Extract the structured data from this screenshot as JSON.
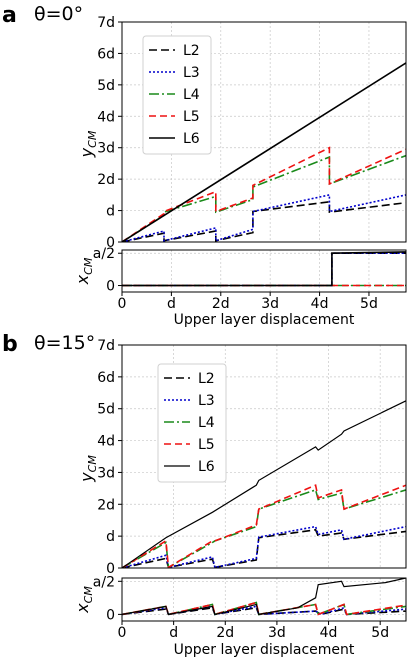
{
  "chart_data": [
    {
      "panel_letter": "a",
      "theta_label": "θ=0°",
      "type": "line",
      "xlabel": "Upper layer displacement",
      "top_ylabel": "y",
      "top_ylabel_sub": "CM",
      "bottom_ylabel": "x",
      "bottom_ylabel_sub": "CM",
      "xlim": [
        0,
        5.75
      ],
      "top_ylim": [
        0,
        7
      ],
      "bottom_ylim": [
        -0.1,
        0.55
      ],
      "xticks": [
        {
          "v": 0,
          "label": "0"
        },
        {
          "v": 1,
          "label": "d"
        },
        {
          "v": 2,
          "label": "2d"
        },
        {
          "v": 3,
          "label": "3d"
        },
        {
          "v": 4,
          "label": "4d"
        },
        {
          "v": 5,
          "label": "5d"
        }
      ],
      "top_yticks": [
        {
          "v": 0,
          "label": "0"
        },
        {
          "v": 1,
          "label": "d"
        },
        {
          "v": 2,
          "label": "2d"
        },
        {
          "v": 3,
          "label": "3d"
        },
        {
          "v": 4,
          "label": "4d"
        },
        {
          "v": 5,
          "label": "5d"
        },
        {
          "v": 6,
          "label": "6d"
        },
        {
          "v": 7,
          "label": "7d"
        }
      ],
      "bottom_yticks": [
        {
          "v": 0,
          "label": "0"
        },
        {
          "v": 0.5,
          "label": "a/2"
        }
      ],
      "grid": true,
      "legend_position": "upper-left",
      "series": [
        {
          "name": "L2",
          "color": "#000000",
          "dash": "8,4",
          "width": 1.6,
          "y": [
            [
              0,
              0
            ],
            [
              0.85,
              0.28
            ],
            [
              0.85,
              0.04
            ],
            [
              1.9,
              0.35
            ],
            [
              1.9,
              0.04
            ],
            [
              2.65,
              0.3
            ],
            [
              2.65,
              0.97
            ],
            [
              4.2,
              1.28
            ],
            [
              4.2,
              0.95
            ],
            [
              5.75,
              1.25
            ]
          ],
          "x": [
            [
              0,
              0
            ],
            [
              4.25,
              0
            ],
            [
              4.25,
              0.5
            ],
            [
              5.75,
              0.5
            ]
          ]
        },
        {
          "name": "L3",
          "color": "#0000cc",
          "dash": "2,2",
          "width": 1.6,
          "y": [
            [
              0,
              0
            ],
            [
              0.85,
              0.35
            ],
            [
              0.85,
              0.04
            ],
            [
              1.9,
              0.45
            ],
            [
              1.9,
              0.04
            ],
            [
              2.65,
              0.4
            ],
            [
              2.65,
              0.97
            ],
            [
              4.2,
              1.5
            ],
            [
              4.2,
              0.97
            ],
            [
              5.75,
              1.5
            ]
          ],
          "x": [
            [
              0,
              0
            ],
            [
              4.25,
              0
            ],
            [
              4.25,
              0.5
            ],
            [
              5.75,
              0.5
            ]
          ]
        },
        {
          "name": "L4",
          "color": "#1a8a1a",
          "dash": "10,3,2,3",
          "width": 1.6,
          "y": [
            [
              0,
              0
            ],
            [
              0.85,
              0.85
            ],
            [
              0.85,
              0.95
            ],
            [
              1.9,
              1.45
            ],
            [
              1.9,
              0.95
            ],
            [
              2.65,
              1.35
            ],
            [
              2.65,
              1.75
            ],
            [
              4.2,
              2.7
            ],
            [
              4.2,
              1.85
            ],
            [
              5.75,
              2.75
            ]
          ],
          "x": [
            [
              0,
              0
            ],
            [
              4.25,
              0
            ],
            [
              4.3,
              0
            ],
            [
              5.75,
              0
            ]
          ]
        },
        {
          "name": "L5",
          "color": "#ee1111",
          "dash": "7,4",
          "width": 1.6,
          "y": [
            [
              0,
              0
            ],
            [
              0.85,
              0.9
            ],
            [
              0.85,
              0.97
            ],
            [
              1.9,
              1.6
            ],
            [
              1.9,
              0.97
            ],
            [
              2.65,
              1.4
            ],
            [
              2.65,
              1.8
            ],
            [
              4.2,
              3.0
            ],
            [
              4.2,
              1.85
            ],
            [
              5.75,
              2.95
            ]
          ],
          "x": [
            [
              0,
              0
            ],
            [
              4.25,
              0
            ],
            [
              4.3,
              0
            ],
            [
              5.75,
              0
            ]
          ]
        },
        {
          "name": "L6",
          "color": "#000000",
          "dash": "",
          "width": 1.6,
          "y": [
            [
              0,
              0
            ],
            [
              5.75,
              5.7
            ]
          ],
          "x": [
            [
              0,
              0
            ],
            [
              4.25,
              0
            ],
            [
              4.25,
              0.5
            ],
            [
              5.75,
              0.52
            ]
          ]
        }
      ]
    },
    {
      "panel_letter": "b",
      "theta_label": "θ=15°",
      "type": "line",
      "xlabel": "Upper layer displacement",
      "top_ylabel": "y",
      "top_ylabel_sub": "CM",
      "bottom_ylabel": "x",
      "bottom_ylabel_sub": "CM",
      "xlim": [
        0,
        5.5
      ],
      "top_ylim": [
        0,
        7
      ],
      "bottom_ylim": [
        -0.1,
        0.55
      ],
      "xticks": [
        {
          "v": 0,
          "label": "0"
        },
        {
          "v": 1,
          "label": "d"
        },
        {
          "v": 2,
          "label": "2d"
        },
        {
          "v": 3,
          "label": "3d"
        },
        {
          "v": 4,
          "label": "4d"
        },
        {
          "v": 5,
          "label": "5d"
        }
      ],
      "top_yticks": [
        {
          "v": 0,
          "label": "0"
        },
        {
          "v": 1,
          "label": "d"
        },
        {
          "v": 2,
          "label": "2d"
        },
        {
          "v": 3,
          "label": "3d"
        },
        {
          "v": 4,
          "label": "4d"
        },
        {
          "v": 5,
          "label": "5d"
        },
        {
          "v": 6,
          "label": "6d"
        },
        {
          "v": 7,
          "label": "7d"
        }
      ],
      "bottom_yticks": [
        {
          "v": 0,
          "label": "0"
        },
        {
          "v": 0.5,
          "label": "a/2"
        }
      ],
      "grid": true,
      "legend_position": "upper-left",
      "series": [
        {
          "name": "L2",
          "color": "#000000",
          "dash": "8,4",
          "width": 1.6,
          "y": [
            [
              0,
              0
            ],
            [
              0.85,
              0.3
            ],
            [
              0.9,
              0.02
            ],
            [
              1.75,
              0.28
            ],
            [
              1.8,
              0.02
            ],
            [
              2.6,
              0.25
            ],
            [
              2.65,
              0.95
            ],
            [
              3.75,
              1.2
            ],
            [
              3.8,
              1.0
            ],
            [
              4.25,
              1.1
            ],
            [
              4.3,
              0.9
            ],
            [
              5.5,
              1.15
            ]
          ],
          "x": [
            [
              0,
              0
            ],
            [
              0.85,
              0.08
            ],
            [
              0.9,
              0
            ],
            [
              1.75,
              0.1
            ],
            [
              1.8,
              0
            ],
            [
              2.6,
              0.1
            ],
            [
              2.65,
              0
            ],
            [
              3.75,
              0.05
            ],
            [
              3.85,
              0
            ],
            [
              4.3,
              0.08
            ],
            [
              4.35,
              0
            ],
            [
              5.5,
              0.05
            ]
          ]
        },
        {
          "name": "L3",
          "color": "#0000cc",
          "dash": "2,2",
          "width": 1.6,
          "y": [
            [
              0,
              0
            ],
            [
              0.85,
              0.4
            ],
            [
              0.9,
              0.02
            ],
            [
              1.75,
              0.35
            ],
            [
              1.8,
              0.02
            ],
            [
              2.6,
              0.3
            ],
            [
              2.65,
              0.97
            ],
            [
              3.75,
              1.3
            ],
            [
              3.8,
              1.05
            ],
            [
              4.25,
              1.2
            ],
            [
              4.3,
              0.9
            ],
            [
              5.5,
              1.3
            ]
          ],
          "x": [
            [
              0,
              0
            ],
            [
              0.85,
              0.1
            ],
            [
              0.9,
              0
            ],
            [
              1.75,
              0.12
            ],
            [
              1.8,
              0
            ],
            [
              2.6,
              0.12
            ],
            [
              2.65,
              0
            ],
            [
              3.75,
              0.05
            ],
            [
              3.85,
              0
            ],
            [
              4.3,
              0.1
            ],
            [
              4.35,
              0
            ],
            [
              5.5,
              0.08
            ]
          ]
        },
        {
          "name": "L4",
          "color": "#1a8a1a",
          "dash": "10,3,2,3",
          "width": 1.6,
          "y": [
            [
              0,
              0
            ],
            [
              0.85,
              0.8
            ],
            [
              0.9,
              0.02
            ],
            [
              1.75,
              0.8
            ],
            [
              1.8,
              0.85
            ],
            [
              2.6,
              1.3
            ],
            [
              2.65,
              1.85
            ],
            [
              3.75,
              2.45
            ],
            [
              3.8,
              2.15
            ],
            [
              4.25,
              2.35
            ],
            [
              4.3,
              1.85
            ],
            [
              5.5,
              2.45
            ]
          ],
          "x": [
            [
              0,
              0
            ],
            [
              0.85,
              0.12
            ],
            [
              0.9,
              0
            ],
            [
              1.75,
              0.15
            ],
            [
              1.8,
              0
            ],
            [
              2.6,
              0.18
            ],
            [
              2.65,
              0
            ],
            [
              3.75,
              0.15
            ],
            [
              3.8,
              0
            ],
            [
              4.3,
              0.15
            ],
            [
              4.35,
              0
            ],
            [
              5.5,
              0.12
            ]
          ]
        },
        {
          "name": "L5",
          "color": "#ee1111",
          "dash": "7,4",
          "width": 1.6,
          "y": [
            [
              0,
              0
            ],
            [
              0.85,
              0.85
            ],
            [
              0.9,
              0.02
            ],
            [
              1.75,
              0.85
            ],
            [
              1.8,
              0.85
            ],
            [
              2.6,
              1.35
            ],
            [
              2.65,
              1.85
            ],
            [
              3.75,
              2.6
            ],
            [
              3.8,
              2.2
            ],
            [
              4.25,
              2.45
            ],
            [
              4.3,
              1.85
            ],
            [
              5.5,
              2.6
            ]
          ],
          "x": [
            [
              0,
              0
            ],
            [
              0.85,
              0.12
            ],
            [
              0.9,
              0
            ],
            [
              1.75,
              0.15
            ],
            [
              1.8,
              0
            ],
            [
              2.6,
              0.18
            ],
            [
              2.65,
              0
            ],
            [
              3.75,
              0.15
            ],
            [
              3.8,
              0
            ],
            [
              4.3,
              0.15
            ],
            [
              4.35,
              0
            ],
            [
              5.5,
              0.14
            ]
          ]
        },
        {
          "name": "L6",
          "color": "#000000",
          "dash": "",
          "width": 1.2,
          "y": [
            [
              0,
              0
            ],
            [
              0.85,
              0.95
            ],
            [
              1.75,
              1.75
            ],
            [
              2.6,
              2.6
            ],
            [
              2.65,
              2.75
            ],
            [
              3.75,
              3.8
            ],
            [
              3.8,
              3.7
            ],
            [
              4.25,
              4.2
            ],
            [
              4.3,
              4.3
            ],
            [
              5.5,
              5.25
            ]
          ],
          "x": [
            [
              0,
              0
            ],
            [
              0.85,
              0.12
            ],
            [
              0.9,
              0
            ],
            [
              1.75,
              0.12
            ],
            [
              1.8,
              0
            ],
            [
              2.6,
              0.15
            ],
            [
              2.65,
              0
            ],
            [
              3.4,
              0.1
            ],
            [
              3.75,
              0.25
            ],
            [
              3.8,
              0.45
            ],
            [
              4.25,
              0.5
            ],
            [
              4.3,
              0.42
            ],
            [
              5.1,
              0.48
            ],
            [
              5.5,
              0.55
            ]
          ]
        }
      ]
    }
  ]
}
